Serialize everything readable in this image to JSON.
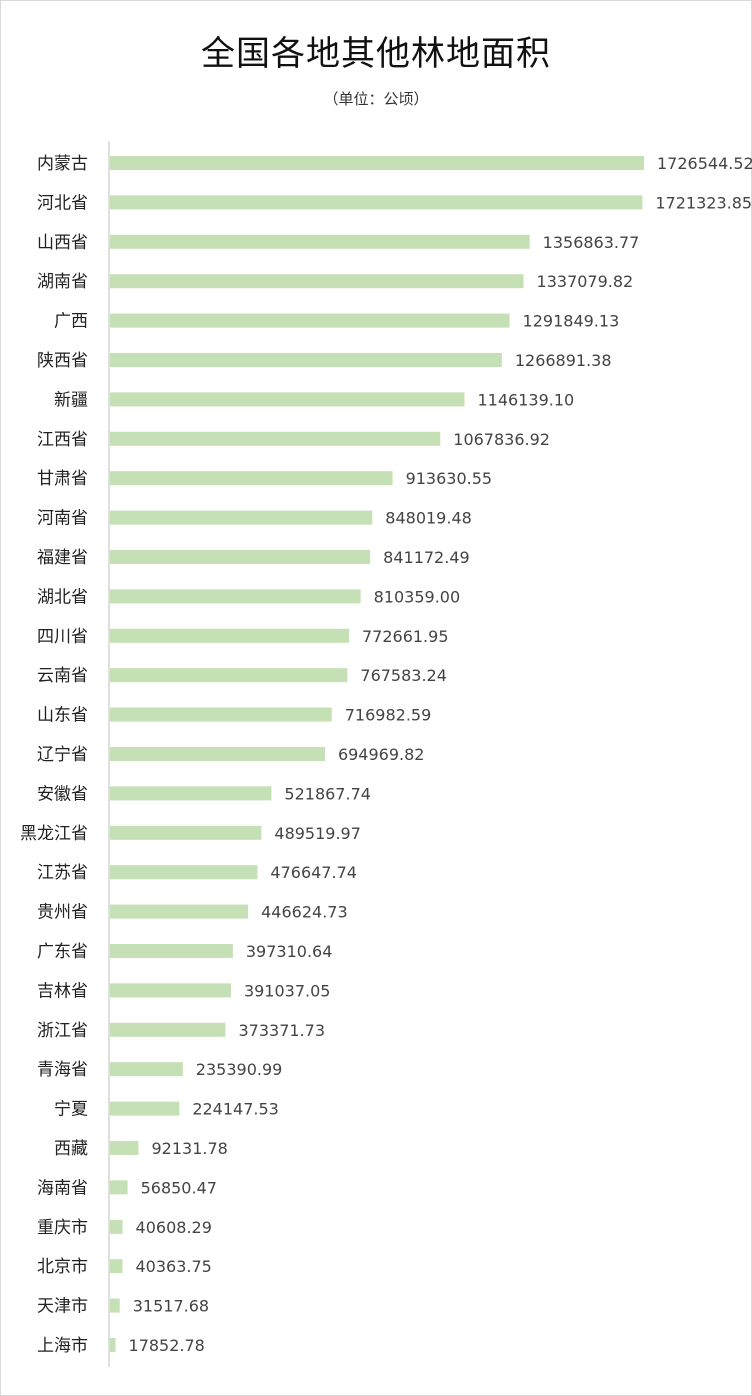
{
  "chart_data": {
    "type": "bar",
    "orientation": "horizontal",
    "title": "全国各地其他林地面积",
    "subtitle": "（单位：公顷）",
    "categories": [
      "内蒙古",
      "河北省",
      "山西省",
      "湖南省",
      "广西",
      "陕西省",
      "新疆",
      "江西省",
      "甘肃省",
      "河南省",
      "福建省",
      "湖北省",
      "四川省",
      "云南省",
      "山东省",
      "辽宁省",
      "安徽省",
      "黑龙江省",
      "江苏省",
      "贵州省",
      "广东省",
      "吉林省",
      "浙江省",
      "青海省",
      "宁夏",
      "西藏",
      "海南省",
      "重庆市",
      "北京市",
      "天津市",
      "上海市"
    ],
    "values": [
      1726544.52,
      1721323.85,
      1356863.77,
      1337079.82,
      1291849.13,
      1266891.38,
      1146139.1,
      1067836.92,
      913630.55,
      848019.48,
      841172.49,
      810359.0,
      772661.95,
      767583.24,
      716982.59,
      694969.82,
      521867.74,
      489519.97,
      476647.74,
      446624.73,
      397310.64,
      391037.05,
      373371.73,
      235390.99,
      224147.53,
      92131.78,
      56850.47,
      40608.29,
      40363.75,
      31517.68,
      17852.78
    ],
    "value_labels": [
      "1726544.52",
      "1721323.85",
      "1356863.77",
      "1337079.82",
      "1291849.13",
      "1266891.38",
      "1146139.10",
      "1067836.92",
      "913630.55",
      "848019.48",
      "841172.49",
      "810359.00",
      "772661.95",
      "767583.24",
      "716982.59",
      "694969.82",
      "521867.74",
      "489519.97",
      "476647.74",
      "446624.73",
      "397310.64",
      "391037.05",
      "373371.73",
      "235390.99",
      "224147.53",
      "92131.78",
      "56850.47",
      "40608.29",
      "40363.75",
      "31517.68",
      "17852.78"
    ],
    "bar_color": "#c5e0b4",
    "axis_color": "#bfbfbf",
    "xlim": [
      0,
      1726544.52
    ],
    "grid": false,
    "legend": "none"
  }
}
